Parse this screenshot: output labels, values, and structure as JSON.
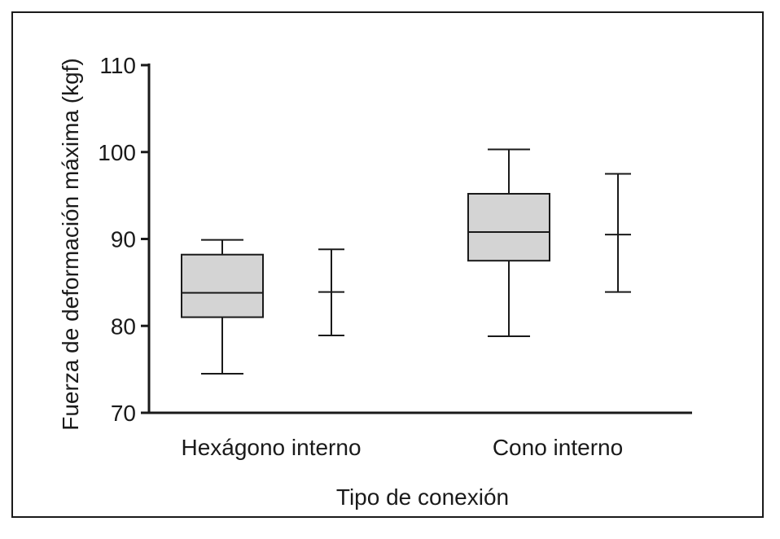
{
  "chart_data": {
    "type": "boxplot",
    "title": "",
    "xlabel": "Tipo de conexión",
    "ylabel": "Fuerza de deformación máxima (kgf)",
    "ylim": [
      70,
      110
    ],
    "yticks": [
      70,
      80,
      90,
      100,
      110
    ],
    "grid": false,
    "colors": {
      "box_fill": "#d4d4d4",
      "stroke": "#1a1a1a"
    },
    "categories": [
      "Hexágono interno",
      "Cono interno"
    ],
    "boxes": [
      {
        "category": "Hexágono interno",
        "min": 74.5,
        "q1": 81.0,
        "median": 83.8,
        "q3": 88.2,
        "max": 89.9
      },
      {
        "category": "Cono interno",
        "min": 78.8,
        "q1": 87.5,
        "median": 90.8,
        "q3": 95.2,
        "max": 100.3
      }
    ],
    "error_bars": [
      {
        "category": "Hexágono interno",
        "low": 78.9,
        "center": 83.9,
        "high": 88.8
      },
      {
        "category": "Cono interno",
        "low": 83.9,
        "center": 90.5,
        "high": 97.5
      }
    ]
  }
}
